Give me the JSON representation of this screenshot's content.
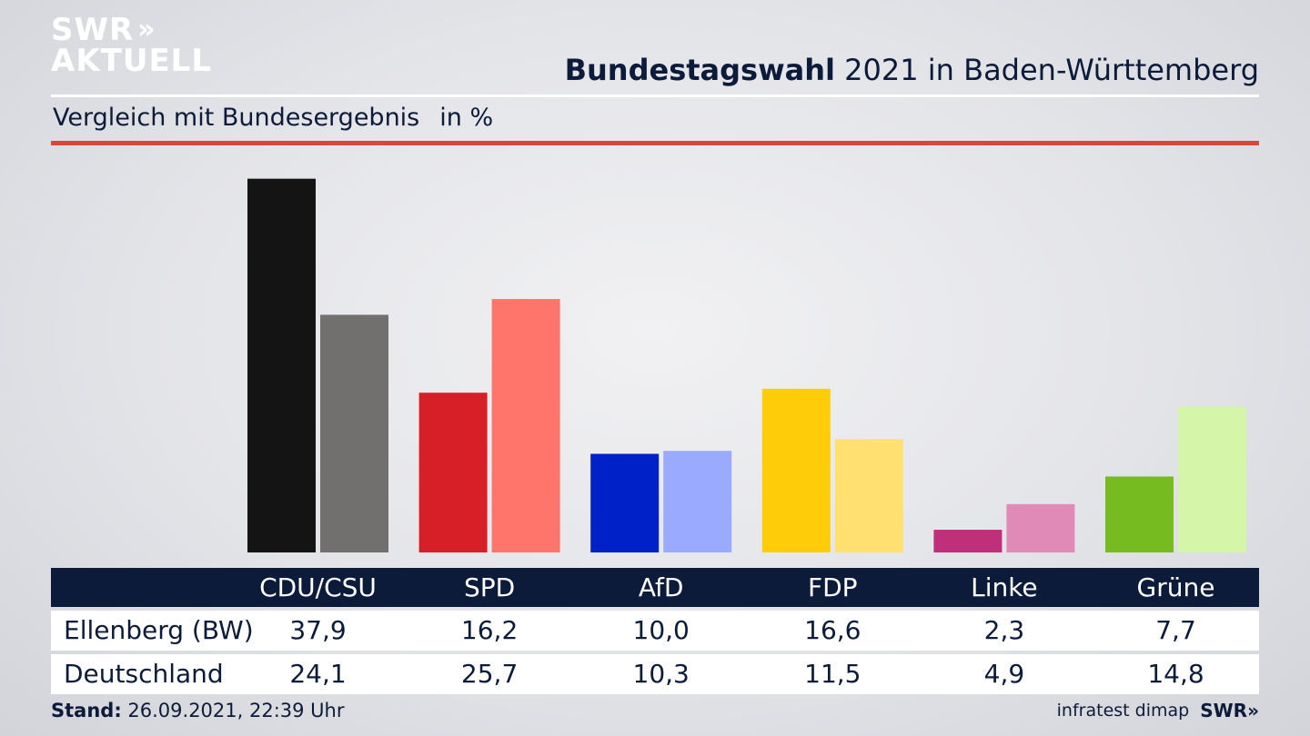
{
  "brand": {
    "logo_line1": "SWR",
    "logo_chevrons": "»",
    "logo_line2": "AKTUELL"
  },
  "header": {
    "title_bold": "Bundestagswahl",
    "title_rest": " 2021 in Baden-Württemberg",
    "subtitle": "Vergleich mit Bundesergebnis",
    "unit": "in %"
  },
  "colors": {
    "accent_red": "#d34a3a",
    "navy": "#0d1b3a"
  },
  "chart_data": {
    "type": "bar",
    "categories": [
      "CDU/CSU",
      "SPD",
      "AfD",
      "FDP",
      "Linke",
      "Grüne"
    ],
    "series": [
      {
        "name": "Ellenberg (BW)",
        "values": [
          37.9,
          16.2,
          10.0,
          16.6,
          2.3,
          7.7
        ],
        "colors": [
          "#141414",
          "#d61f26",
          "#0020c8",
          "#ffcc0a",
          "#bf2f7a",
          "#76bc21"
        ]
      },
      {
        "name": "Deutschland",
        "values": [
          24.1,
          25.7,
          10.3,
          11.5,
          4.9,
          14.8
        ],
        "colors": [
          "#72706e",
          "#ff756b",
          "#9aabff",
          "#ffe070",
          "#e08ab8",
          "#d5f5a8"
        ]
      }
    ],
    "ylim": [
      0,
      38.7
    ],
    "grid": false,
    "legend": "table-below"
  },
  "table": {
    "rows": [
      {
        "label": "Ellenberg (BW)",
        "values": [
          "37,9",
          "16,2",
          "10,0",
          "16,6",
          "2,3",
          "7,7"
        ]
      },
      {
        "label": "Deutschland",
        "values": [
          "24,1",
          "25,7",
          "10,3",
          "11,5",
          "4,9",
          "14,8"
        ]
      }
    ]
  },
  "footer": {
    "stand_label": "Stand:",
    "stand_value": " 26.09.2021, 22:39 Uhr",
    "source": "infratest dimap",
    "brand": "SWR»"
  }
}
